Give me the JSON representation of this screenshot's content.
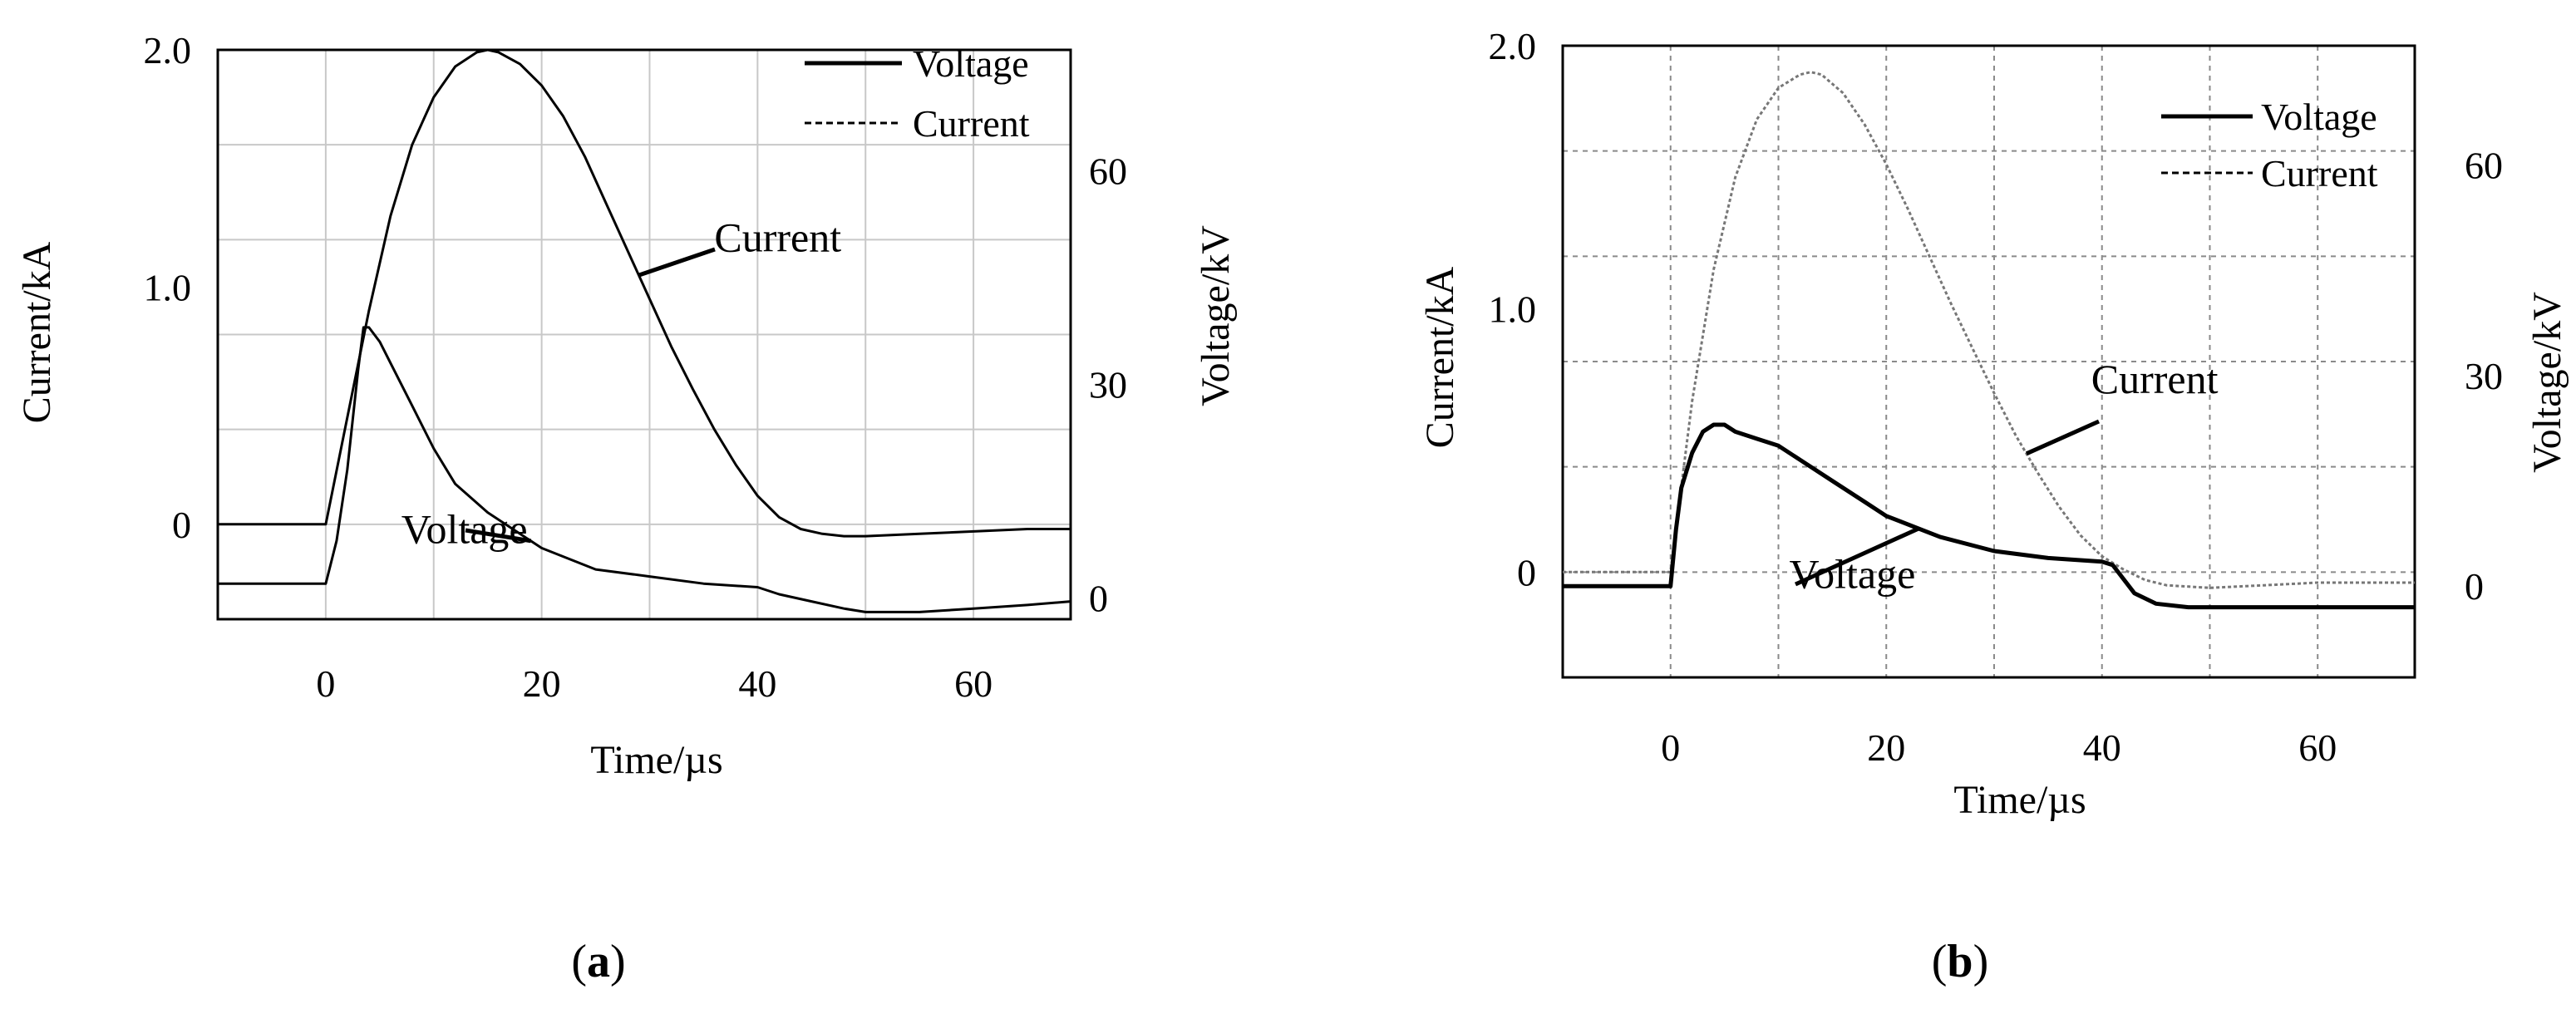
{
  "chart_data": [
    {
      "panel": "a",
      "type": "line",
      "caption_open": "(",
      "caption_letter": "a",
      "caption_close": ")",
      "xlabel": "Time/µs",
      "ylabel_left": "Current/kA",
      "ylabel_right": "Voltage/kV",
      "xlim": [
        -10,
        69
      ],
      "ylim_left": [
        -0.4,
        2.0
      ],
      "ylim_right": [
        -3,
        77
      ],
      "x_ticks": [
        0,
        20,
        40,
        60
      ],
      "x_tick_labels": [
        "0",
        "20",
        "40",
        "60"
      ],
      "y_left_ticks": [
        0,
        1.0,
        2.0
      ],
      "y_left_tick_labels": [
        "0",
        "1.0",
        "2.0"
      ],
      "y_right_ticks": [
        0,
        30,
        60
      ],
      "y_right_tick_labels": [
        "0",
        "30",
        "60"
      ],
      "legend": [
        {
          "label": "Voltage",
          "style": "solid"
        },
        {
          "label": "Current",
          "style": "dashed"
        }
      ],
      "annotations": [
        {
          "text": "Current",
          "series": "Current",
          "at_x": 29,
          "text_x": 36,
          "text_y": 1.15
        },
        {
          "text": "Voltage",
          "series": "Voltage",
          "at_x": 19,
          "text_x": 7,
          "text_y": -0.08
        }
      ],
      "series": [
        {
          "name": "Current",
          "axis": "left",
          "x": [
            -10,
            -5,
            0,
            2,
            4,
            6,
            8,
            10,
            12,
            14,
            15,
            16,
            18,
            20,
            22,
            24,
            26,
            28,
            30,
            32,
            34,
            36,
            38,
            40,
            42,
            44,
            46,
            48,
            50,
            55,
            60,
            65,
            69
          ],
          "y": [
            0,
            0,
            0,
            0.45,
            0.9,
            1.3,
            1.6,
            1.8,
            1.93,
            1.99,
            2.0,
            1.99,
            1.94,
            1.85,
            1.72,
            1.55,
            1.35,
            1.15,
            0.95,
            0.75,
            0.57,
            0.4,
            0.25,
            0.12,
            0.03,
            -0.02,
            -0.04,
            -0.05,
            -0.05,
            -0.04,
            -0.03,
            -0.02,
            -0.02
          ]
        },
        {
          "name": "Voltage",
          "axis": "right",
          "x": [
            -10,
            -5,
            0,
            1,
            2,
            3,
            3.5,
            4,
            5,
            6,
            8,
            10,
            12,
            15,
            18,
            20,
            25,
            30,
            35,
            40,
            42,
            45,
            48,
            50,
            55,
            60,
            65,
            69
          ],
          "y": [
            2,
            2,
            2,
            8,
            18,
            32,
            38,
            38,
            36,
            33,
            27,
            21,
            16,
            12,
            9,
            7,
            4,
            3,
            2,
            1.5,
            0.5,
            -0.5,
            -1.5,
            -2,
            -2,
            -1.5,
            -1,
            -0.5
          ]
        }
      ]
    },
    {
      "panel": "b",
      "type": "line",
      "caption_open": "(",
      "caption_letter": "b",
      "caption_close": ")",
      "xlabel": "Time/µs",
      "ylabel_left": "Current/kA",
      "ylabel_right": "Voltage/kV",
      "xlim": [
        -10,
        69
      ],
      "ylim_left": [
        -0.4,
        2.0
      ],
      "ylim_right": [
        -13,
        77
      ],
      "x_ticks": [
        0,
        20,
        40,
        60
      ],
      "x_tick_labels": [
        "0",
        "20",
        "40",
        "60"
      ],
      "y_left_ticks": [
        0,
        1.0,
        2.0
      ],
      "y_left_tick_labels": [
        "0",
        "1.0",
        "2.0"
      ],
      "y_right_ticks": [
        0,
        30,
        60
      ],
      "y_right_tick_labels": [
        "0",
        "30",
        "60"
      ],
      "legend": [
        {
          "label": "Voltage",
          "style": "solid"
        },
        {
          "label": "Current",
          "style": "dashed"
        }
      ],
      "annotations": [
        {
          "text": "Current",
          "series": "Current",
          "at_x": 33,
          "text_x": 39,
          "text_y": 0.68
        },
        {
          "text": "Voltage",
          "series": "Voltage",
          "at_x": 23,
          "text_x": 11,
          "text_y": -0.06
        }
      ],
      "series": [
        {
          "name": "Current",
          "axis": "left",
          "x": [
            -10,
            -5,
            0,
            2,
            4,
            6,
            8,
            10,
            12,
            13,
            14,
            16,
            18,
            20,
            22,
            24,
            26,
            28,
            30,
            32,
            34,
            36,
            38,
            40,
            42,
            44,
            46,
            50,
            55,
            60,
            65,
            69
          ],
          "y": [
            0,
            0,
            0,
            0.65,
            1.15,
            1.5,
            1.72,
            1.84,
            1.89,
            1.9,
            1.89,
            1.82,
            1.7,
            1.55,
            1.38,
            1.2,
            1.02,
            0.85,
            0.68,
            0.52,
            0.38,
            0.25,
            0.14,
            0.06,
            0.01,
            -0.03,
            -0.05,
            -0.06,
            -0.05,
            -0.04,
            -0.04,
            -0.04
          ]
        },
        {
          "name": "Voltage",
          "axis": "right",
          "x": [
            -10,
            -5,
            0,
            0.5,
            1,
            2,
            3,
            4,
            5,
            6,
            8,
            10,
            12,
            15,
            18,
            20,
            25,
            30,
            35,
            40,
            41,
            43,
            45,
            48,
            50,
            55,
            60,
            65,
            69
          ],
          "y": [
            0,
            0,
            0,
            8,
            14,
            19,
            22,
            23,
            23,
            22,
            21,
            20,
            18,
            15,
            12,
            10,
            7,
            5,
            4,
            3.5,
            3,
            -1,
            -2.5,
            -3,
            -3,
            -3,
            -3,
            -3,
            -3
          ]
        }
      ]
    }
  ]
}
